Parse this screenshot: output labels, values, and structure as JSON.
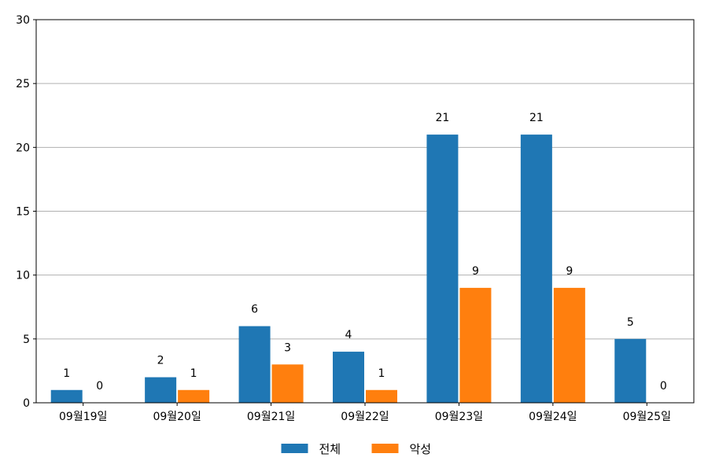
{
  "chart_data": {
    "type": "bar",
    "title": "",
    "xlabel": "",
    "ylabel": "",
    "categories": [
      "09월19일",
      "09월20일",
      "09월21일",
      "09월22일",
      "09월23일",
      "09월24일",
      "09월25일"
    ],
    "series": [
      {
        "name": "전체",
        "color": "#1f77b4",
        "values": [
          1,
          2,
          6,
          4,
          21,
          21,
          5
        ]
      },
      {
        "name": "악성",
        "color": "#ff7f0e",
        "values": [
          0,
          1,
          3,
          1,
          9,
          9,
          0
        ]
      }
    ],
    "ylim": [
      0,
      30
    ],
    "yticks": [
      0,
      5,
      10,
      15,
      20,
      25,
      30
    ],
    "grid": "horizontal",
    "legend_position": "bottom-center",
    "data_labels": true
  }
}
